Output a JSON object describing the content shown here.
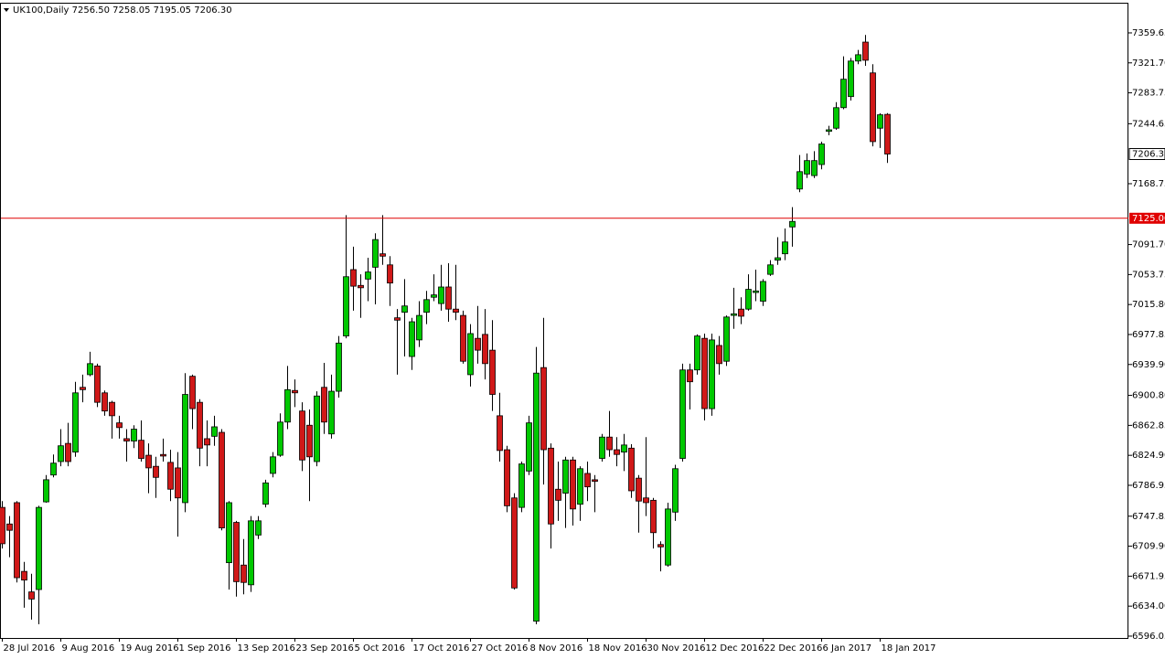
{
  "chart_data": {
    "type": "candlestick",
    "title": "UK100,Daily  7256.50 7258.05 7195.05 7206.30",
    "categories": [
      "28 Jul 2016",
      null,
      null,
      null,
      null,
      null,
      null,
      null,
      "9 Aug 2016",
      null,
      null,
      null,
      null,
      null,
      null,
      null,
      "19 Aug 2016",
      null,
      null,
      null,
      null,
      null,
      null,
      null,
      "1 Sep 2016",
      null,
      null,
      null,
      null,
      null,
      null,
      null,
      "13 Sep 2016",
      null,
      null,
      null,
      null,
      null,
      null,
      null,
      "23 Sep 2016",
      null,
      null,
      null,
      null,
      null,
      null,
      null,
      "5 Oct 2016",
      null,
      null,
      null,
      null,
      null,
      null,
      null,
      "17 Oct 2016",
      null,
      null,
      null,
      null,
      null,
      null,
      null,
      "27 Oct 2016",
      null,
      null,
      null,
      null,
      null,
      null,
      null,
      "8 Nov 2016",
      null,
      null,
      null,
      null,
      null,
      null,
      null,
      "18 Nov 2016",
      null,
      null,
      null,
      null,
      null,
      null,
      null,
      "30 Nov 2016",
      null,
      null,
      null,
      null,
      null,
      null,
      null,
      "12 Dec 2016",
      null,
      null,
      null,
      null,
      null,
      null,
      null,
      "22 Dec 2016",
      null,
      null,
      null,
      null,
      null,
      null,
      null,
      "6 Jan 2017",
      null,
      null,
      null,
      null,
      null,
      null,
      null,
      "18 Jan 2017",
      null
    ],
    "open": [
      6759,
      6738,
      6765,
      6678,
      6652,
      6655,
      6766,
      6800,
      6817,
      6840,
      6829,
      6911,
      6927,
      6938,
      6904,
      6892,
      6866,
      6846,
      6843,
      6844,
      6825,
      6811,
      6826,
      6816,
      6809,
      6765,
      6925,
      6892,
      6846,
      6849,
      6854,
      6689,
      6740,
      6686,
      6661,
      6724,
      6763,
      6802,
      6825,
      6867,
      6907,
      6881,
      6863,
      6817,
      6911,
      6852,
      6906,
      6976,
      7060,
      7040,
      7048,
      7063,
      7080,
      7066,
      6999,
      7006,
      6950,
      6971,
      7006,
      7025,
      7017,
      7038,
      7010,
      7002,
      6927,
      6973,
      6978,
      6958,
      6875,
      6832,
      6771,
      6759,
      6805,
      6615,
      6936,
      6834,
      6782,
      6777,
      6819,
      6763,
      6802,
      6794,
      6821,
      6848,
      6832,
      6829,
      6834,
      6796,
      6771,
      6768,
      6712,
      6686,
      6753,
      6821,
      6933,
      6933,
      6973,
      6884,
      6964,
      6944,
      7002,
      7010,
      7010,
      7031,
      7020,
      7054,
      7072,
      7080,
      7114,
      7162,
      7181,
      7179,
      7193,
      7235,
      7239,
      7265,
      7279,
      7324,
      7348,
      7309,
      7239,
      7256.5
    ],
    "high": [
      6767,
      6748,
      6767,
      6690,
      6675,
      6761,
      6800,
      6826,
      6858,
      6866,
      6918,
      6927,
      6956,
      6941,
      6907,
      6894,
      6875,
      6858,
      6863,
      6869,
      6840,
      6823,
      6846,
      6832,
      6829,
      6929,
      6927,
      6896,
      6869,
      6875,
      6858,
      6767,
      6742,
      6719,
      6748,
      6748,
      6794,
      6829,
      6878,
      6938,
      6921,
      6892,
      6883,
      6906,
      6942,
      6927,
      6976,
      7129,
      7089,
      7054,
      7075,
      7106,
      7129,
      7077,
      7010,
      7048,
      6999,
      7020,
      7033,
      7054,
      7066,
      7068,
      7066,
      7008,
      6991,
      7014,
      7010,
      6996,
      6904,
      6837,
      6777,
      6817,
      6875,
      6962,
      6999,
      6840,
      6817,
      6823,
      6823,
      6811,
      6817,
      6800,
      6852,
      6881,
      6848,
      6852,
      6839,
      6800,
      6848,
      6771,
      6716,
      6765,
      6813,
      6941,
      6941,
      6978,
      6979,
      6979,
      6976,
      7002,
      7037,
      7025,
      7054,
      7060,
      7048,
      7072,
      7101,
      7112,
      7139,
      7205,
      7207,
      7210,
      7222,
      7242,
      7272,
      7330,
      7328,
      7338,
      7357,
      7320,
      7258,
      7258.05
    ],
    "low": [
      6707,
      6696,
      6664,
      6632,
      6617,
      6611,
      6765,
      6797,
      6811,
      6811,
      6823,
      6892,
      6925,
      6886,
      6875,
      6846,
      6846,
      6817,
      6834,
      6817,
      6777,
      6771,
      6817,
      6767,
      6722,
      6753,
      6858,
      6811,
      6811,
      6837,
      6730,
      6655,
      6646,
      6649,
      6652,
      6719,
      6759,
      6797,
      6823,
      6858,
      6886,
      6805,
      6767,
      6811,
      6852,
      6846,
      6898,
      6973,
      7008,
      6999,
      7020,
      7016,
      7066,
      7014,
      6927,
      6950,
      6933,
      6962,
      6991,
      7020,
      7008,
      6994,
      6996,
      6941,
      6912,
      6941,
      6921,
      6881,
      6817,
      6753,
      6655,
      6753,
      6800,
      6611,
      6788,
      6707,
      6742,
      6733,
      6736,
      6742,
      6767,
      6753,
      6817,
      6823,
      6811,
      6805,
      6771,
      6727,
      6748,
      6707,
      6678,
      6684,
      6742,
      6817,
      6883,
      6927,
      6869,
      6875,
      6927,
      6938,
      6985,
      6991,
      7008,
      7020,
      7014,
      7052,
      7066,
      7072,
      7089,
      7158,
      7176,
      7176,
      7187,
      7230,
      7237,
      7263,
      7274,
      7320,
      7318,
      7216,
      7214,
      7195.05
    ],
    "close": [
      6713,
      6730,
      6670,
      6667,
      6643,
      6759,
      6794,
      6815,
      6837,
      6817,
      6904,
      6908,
      6941,
      6892,
      6881,
      6875,
      6860,
      6843,
      6858,
      6821,
      6809,
      6797,
      6824,
      6782,
      6771,
      6902,
      6884,
      6834,
      6838,
      6861,
      6733,
      6765,
      6665,
      6664,
      6742,
      6742,
      6790,
      6823,
      6867,
      6908,
      6904,
      6819,
      6823,
      6900,
      6867,
      6906,
      6967,
      7051,
      7039,
      7037,
      7057,
      7098,
      7077,
      7043,
      6996,
      7014,
      6994,
      7002,
      7022,
      7028,
      7038,
      7010,
      7006,
      6944,
      6979,
      6958,
      6941,
      6902,
      6831,
      6761,
      6657,
      6814,
      6866,
      6929,
      6832,
      6738,
      6768,
      6819,
      6757,
      6808,
      6785,
      6792,
      6848,
      6832,
      6826,
      6838,
      6780,
      6767,
      6765,
      6727,
      6709,
      6757,
      6808,
      6933,
      6918,
      6976,
      6884,
      6971,
      6941,
      7000,
      7004,
      7001,
      7035,
      7033,
      7045,
      7066,
      7075,
      7095,
      7121,
      7184,
      7198,
      7198,
      7219,
      7237,
      7265,
      7301,
      7324,
      7332,
      7325,
      7222,
      7256,
      7206.3
    ],
    "up_color": "#00c800",
    "down_color": "#d01818",
    "ylim": [
      6593.7,
      7397.8
    ],
    "yticks": [
      7359.65,
      {
        "value": 7321.7,
        "label": "7321.70"
      },
      7283.75,
      7244.65,
      7168.75,
      {
        "value": 7091.7,
        "label": "7091.70"
      },
      7053.75,
      {
        "value": 7015.8,
        "label": "7015.80"
      },
      6977.85,
      {
        "value": 6939.9,
        "label": "6939.90"
      },
      {
        "value": 6900.8,
        "label": "6900.80"
      },
      6862.85,
      {
        "value": 6824.9,
        "label": "6824.90"
      },
      6786.95,
      6747.85,
      {
        "value": 6709.9,
        "label": "6709.90"
      },
      6671.95,
      {
        "value": 6634,
        "label": "6634.00"
      },
      6596.05
    ],
    "hline": {
      "value": 7125,
      "label": "7125.00",
      "color": "#e00000"
    },
    "last_price": {
      "value": 7206.3,
      "label": "7206.30"
    }
  }
}
